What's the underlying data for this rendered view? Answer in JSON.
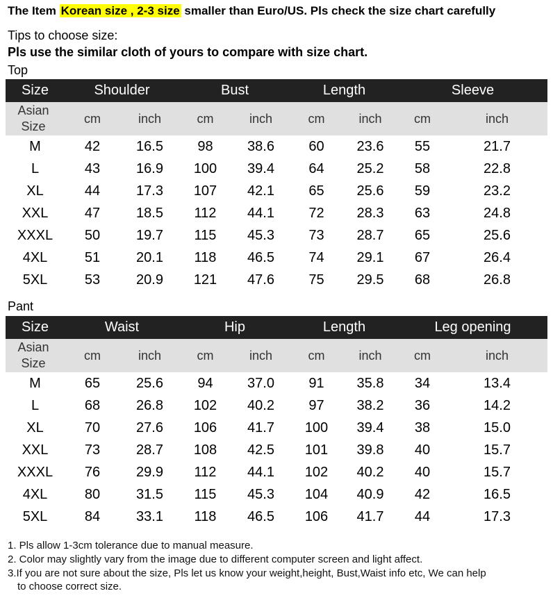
{
  "header": {
    "lead": "The Item ",
    "highlight": "Korean size , 2-3 size",
    "tail": " smaller than Euro/US. Pls check the size chart carefully"
  },
  "tips": "Tips to choose size:",
  "compare": "Pls use the similar cloth of yours to compare with size chart.",
  "top": {
    "label": "Top",
    "columns": [
      "Size",
      "Shoulder",
      "Bust",
      "Length",
      "Sleeve"
    ],
    "sub": [
      "Asian Size",
      "cm",
      "inch",
      "cm",
      "inch",
      "cm",
      "inch",
      "cm",
      "inch"
    ],
    "rows": [
      [
        "M",
        "42",
        "16.5",
        "98",
        "38.6",
        "60",
        "23.6",
        "55",
        "21.7"
      ],
      [
        "L",
        "43",
        "16.9",
        "100",
        "39.4",
        "64",
        "25.2",
        "58",
        "22.8"
      ],
      [
        "XL",
        "44",
        "17.3",
        "107",
        "42.1",
        "65",
        "25.6",
        "59",
        "23.2"
      ],
      [
        "XXL",
        "47",
        "18.5",
        "112",
        "44.1",
        "72",
        "28.3",
        "63",
        "24.8"
      ],
      [
        "XXXL",
        "50",
        "19.7",
        "115",
        "45.3",
        "73",
        "28.7",
        "65",
        "25.6"
      ],
      [
        "4XL",
        "51",
        "20.1",
        "118",
        "46.5",
        "74",
        "29.1",
        "67",
        "26.4"
      ],
      [
        "5XL",
        "53",
        "20.9",
        "121",
        "47.6",
        "75",
        "29.5",
        "68",
        "26.8"
      ]
    ]
  },
  "pant": {
    "label": "Pant",
    "columns": [
      "Size",
      "Waist",
      "Hip",
      "Length",
      "Leg opening"
    ],
    "sub": [
      "Asian Size",
      "cm",
      "inch",
      "cm",
      "inch",
      "cm",
      "inch",
      "cm",
      "inch"
    ],
    "rows": [
      [
        "M",
        "65",
        "25.6",
        "94",
        "37.0",
        "91",
        "35.8",
        "34",
        "13.4"
      ],
      [
        "L",
        "68",
        "26.8",
        "102",
        "40.2",
        "97",
        "38.2",
        "36",
        "14.2"
      ],
      [
        "XL",
        "70",
        "27.6",
        "106",
        "41.7",
        "100",
        "39.4",
        "38",
        "15.0"
      ],
      [
        "XXL",
        "73",
        "28.7",
        "108",
        "42.5",
        "101",
        "39.8",
        "40",
        "15.7"
      ],
      [
        "XXXL",
        "76",
        "29.9",
        "112",
        "44.1",
        "102",
        "40.2",
        "40",
        "15.7"
      ],
      [
        "4XL",
        "80",
        "31.5",
        "115",
        "45.3",
        "104",
        "40.9",
        "42",
        "16.5"
      ],
      [
        "5XL",
        "84",
        "33.1",
        "118",
        "46.5",
        "106",
        "41.7",
        "44",
        "17.3"
      ]
    ]
  },
  "notes": [
    "1. Pls allow 1-3cm tolerance due to manual measure.",
    "2. Color may slightly vary from the image due to different computer screen and light affect.",
    "3.If you are not sure about the size, Pls let us know your weight,height, Bust,Waist info etc, We can help",
    "to choose correct size."
  ],
  "colors": {
    "header_bar": "#222222",
    "subheader_bar": "#e0e0e0",
    "highlight": "#ffff00"
  }
}
